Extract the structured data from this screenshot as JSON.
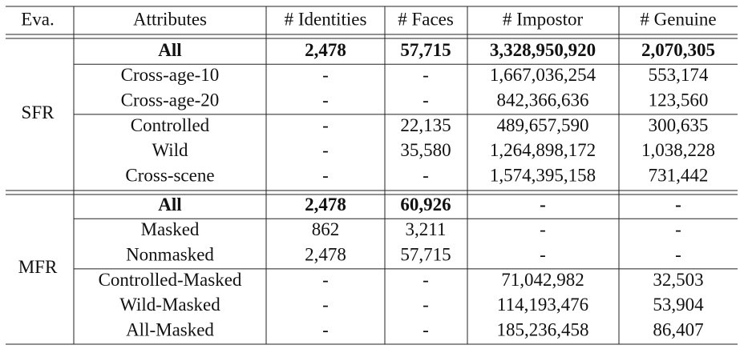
{
  "table": {
    "header": [
      "Eva.",
      "Attributes",
      "# Identities",
      "# Faces",
      "# Impostor",
      "# Genuine"
    ],
    "groups": [
      {
        "label": "SFR",
        "rows": [
          {
            "bold": true,
            "cells": [
              "All",
              "2,478",
              "57,715",
              "3,328,950,920",
              "2,070,305"
            ]
          },
          {
            "bold": false,
            "cells": [
              "Cross-age-10",
              "-",
              "-",
              "1,667,036,254",
              "553,174"
            ]
          },
          {
            "bold": false,
            "cells": [
              "Cross-age-20",
              "-",
              "-",
              "842,366,636",
              "123,560"
            ]
          },
          {
            "bold": false,
            "cells": [
              "Controlled",
              "-",
              "22,135",
              "489,657,590",
              "300,635"
            ]
          },
          {
            "bold": false,
            "cells": [
              "Wild",
              "-",
              "35,580",
              "1,264,898,172",
              "1,038,228"
            ]
          },
          {
            "bold": false,
            "cells": [
              "Cross-scene",
              "-",
              "-",
              "1,574,395,158",
              "731,442"
            ]
          }
        ]
      },
      {
        "label": "MFR",
        "rows": [
          {
            "bold": true,
            "cells": [
              "All",
              "2,478",
              "60,926",
              "-",
              "-"
            ]
          },
          {
            "bold": false,
            "cells": [
              "Masked",
              "862",
              "3,211",
              "-",
              "-"
            ]
          },
          {
            "bold": false,
            "cells": [
              "Nonmasked",
              "2,478",
              "57,715",
              "-",
              "-"
            ]
          },
          {
            "bold": false,
            "cells": [
              "Controlled-Masked",
              "-",
              "-",
              "71,042,982",
              "32,503"
            ]
          },
          {
            "bold": false,
            "cells": [
              "Wild-Masked",
              "-",
              "-",
              "114,193,476",
              "53,904"
            ]
          },
          {
            "bold": false,
            "cells": [
              "All-Masked",
              "-",
              "-",
              "185,236,458",
              "86,407"
            ]
          }
        ]
      }
    ]
  }
}
